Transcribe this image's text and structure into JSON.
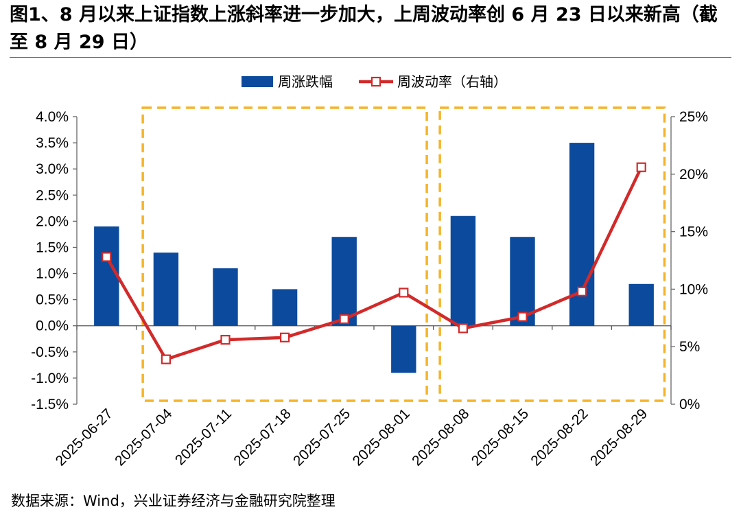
{
  "figure": {
    "title": "图1、8 月以来上证指数上涨斜率进一步加大，上周波动率创 6 月 23 日以来新高（截至 8 月 29 日）",
    "source": "数据来源：Wind，兴业证券经济与金融研究院整理"
  },
  "chart_data": {
    "type": "bar+line",
    "categories": [
      "2025-06-27",
      "2025-07-04",
      "2025-07-11",
      "2025-07-18",
      "2025-07-25",
      "2025-08-01",
      "2025-08-08",
      "2025-08-15",
      "2025-08-22",
      "2025-08-29"
    ],
    "series": [
      {
        "name": "周涨跌幅",
        "type": "bar",
        "axis": "left",
        "color": "#0B4A9C",
        "values": [
          1.9,
          1.4,
          1.1,
          0.7,
          1.7,
          -0.9,
          2.1,
          1.7,
          3.5,
          0.8
        ]
      },
      {
        "name": "周波动率（右轴）",
        "type": "line",
        "axis": "right",
        "color": "#D22A2A",
        "marker": "square-hollow",
        "values": [
          12.8,
          3.9,
          5.6,
          5.8,
          7.4,
          9.7,
          6.6,
          7.6,
          9.8,
          20.6
        ]
      }
    ],
    "y_left": {
      "min": -1.5,
      "max": 4.0,
      "step": 0.5,
      "ticks": [
        "-1.5%",
        "-1.0%",
        "-0.5%",
        "0.0%",
        "0.5%",
        "1.0%",
        "1.5%",
        "2.0%",
        "2.5%",
        "3.0%",
        "3.5%",
        "4.0%"
      ]
    },
    "y_right": {
      "min": 0,
      "max": 25,
      "step": 5,
      "ticks": [
        "0%",
        "5%",
        "10%",
        "15%",
        "20%",
        "25%"
      ]
    },
    "legend": {
      "position": "top-center",
      "items": [
        "周涨跌幅",
        "周波动率（右轴）"
      ]
    },
    "grid": false,
    "highlight_boxes": {
      "color": "#F5B428",
      "style": "dashed",
      "ranges": [
        {
          "from": "2025-07-04",
          "to": "2025-08-01"
        },
        {
          "from": "2025-08-08",
          "to": "2025-08-29"
        }
      ]
    }
  }
}
